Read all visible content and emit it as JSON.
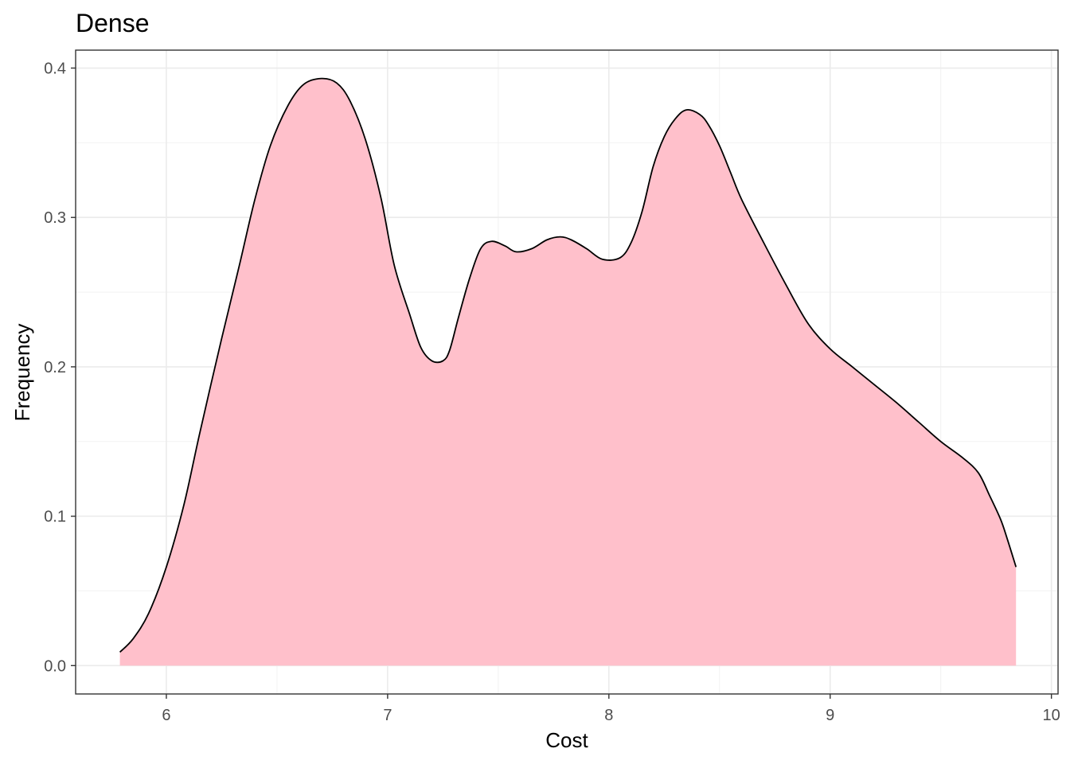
{
  "chart_data": {
    "type": "area",
    "title": "Dense",
    "xlabel": "Cost",
    "ylabel": "Frequency",
    "xlim": [
      5.59,
      10.03
    ],
    "ylim": [
      -0.019,
      0.412
    ],
    "x_ticks": [
      6,
      7,
      8,
      9,
      10
    ],
    "x_tick_labels": [
      "6",
      "7",
      "8",
      "9",
      "10"
    ],
    "y_ticks": [
      0.0,
      0.1,
      0.2,
      0.3,
      0.4
    ],
    "y_tick_labels": [
      "0.0",
      "0.1",
      "0.2",
      "0.3",
      "0.4"
    ],
    "grid": true,
    "legend": "none",
    "fill_color": "#FFC0CB",
    "line_color": "#000000",
    "series": [
      {
        "x": [
          5.79,
          5.85,
          5.92,
          6.0,
          6.08,
          6.15,
          6.25,
          6.33,
          6.4,
          6.47,
          6.55,
          6.62,
          6.7,
          6.77,
          6.83,
          6.9,
          6.97,
          7.03,
          7.1,
          7.15,
          7.2,
          7.25,
          7.28,
          7.32,
          7.37,
          7.42,
          7.47,
          7.53,
          7.58,
          7.65,
          7.72,
          7.78,
          7.83,
          7.9,
          7.97,
          8.05,
          8.1,
          8.15,
          8.2,
          8.25,
          8.3,
          8.35,
          8.41,
          8.45,
          8.5,
          8.55,
          8.6,
          8.7,
          8.8,
          8.9,
          9.0,
          9.1,
          9.2,
          9.3,
          9.4,
          9.5,
          9.6,
          9.67,
          9.72,
          9.77,
          9.8,
          9.84
        ],
        "y": [
          0.009,
          0.018,
          0.035,
          0.066,
          0.108,
          0.155,
          0.219,
          0.268,
          0.312,
          0.348,
          0.375,
          0.389,
          0.393,
          0.39,
          0.378,
          0.352,
          0.313,
          0.268,
          0.235,
          0.213,
          0.204,
          0.204,
          0.211,
          0.233,
          0.259,
          0.279,
          0.284,
          0.281,
          0.277,
          0.279,
          0.285,
          0.287,
          0.285,
          0.279,
          0.272,
          0.273,
          0.283,
          0.304,
          0.334,
          0.354,
          0.366,
          0.372,
          0.369,
          0.362,
          0.348,
          0.33,
          0.312,
          0.283,
          0.255,
          0.229,
          0.212,
          0.2,
          0.188,
          0.176,
          0.163,
          0.15,
          0.139,
          0.129,
          0.114,
          0.098,
          0.085,
          0.066
        ]
      }
    ]
  }
}
